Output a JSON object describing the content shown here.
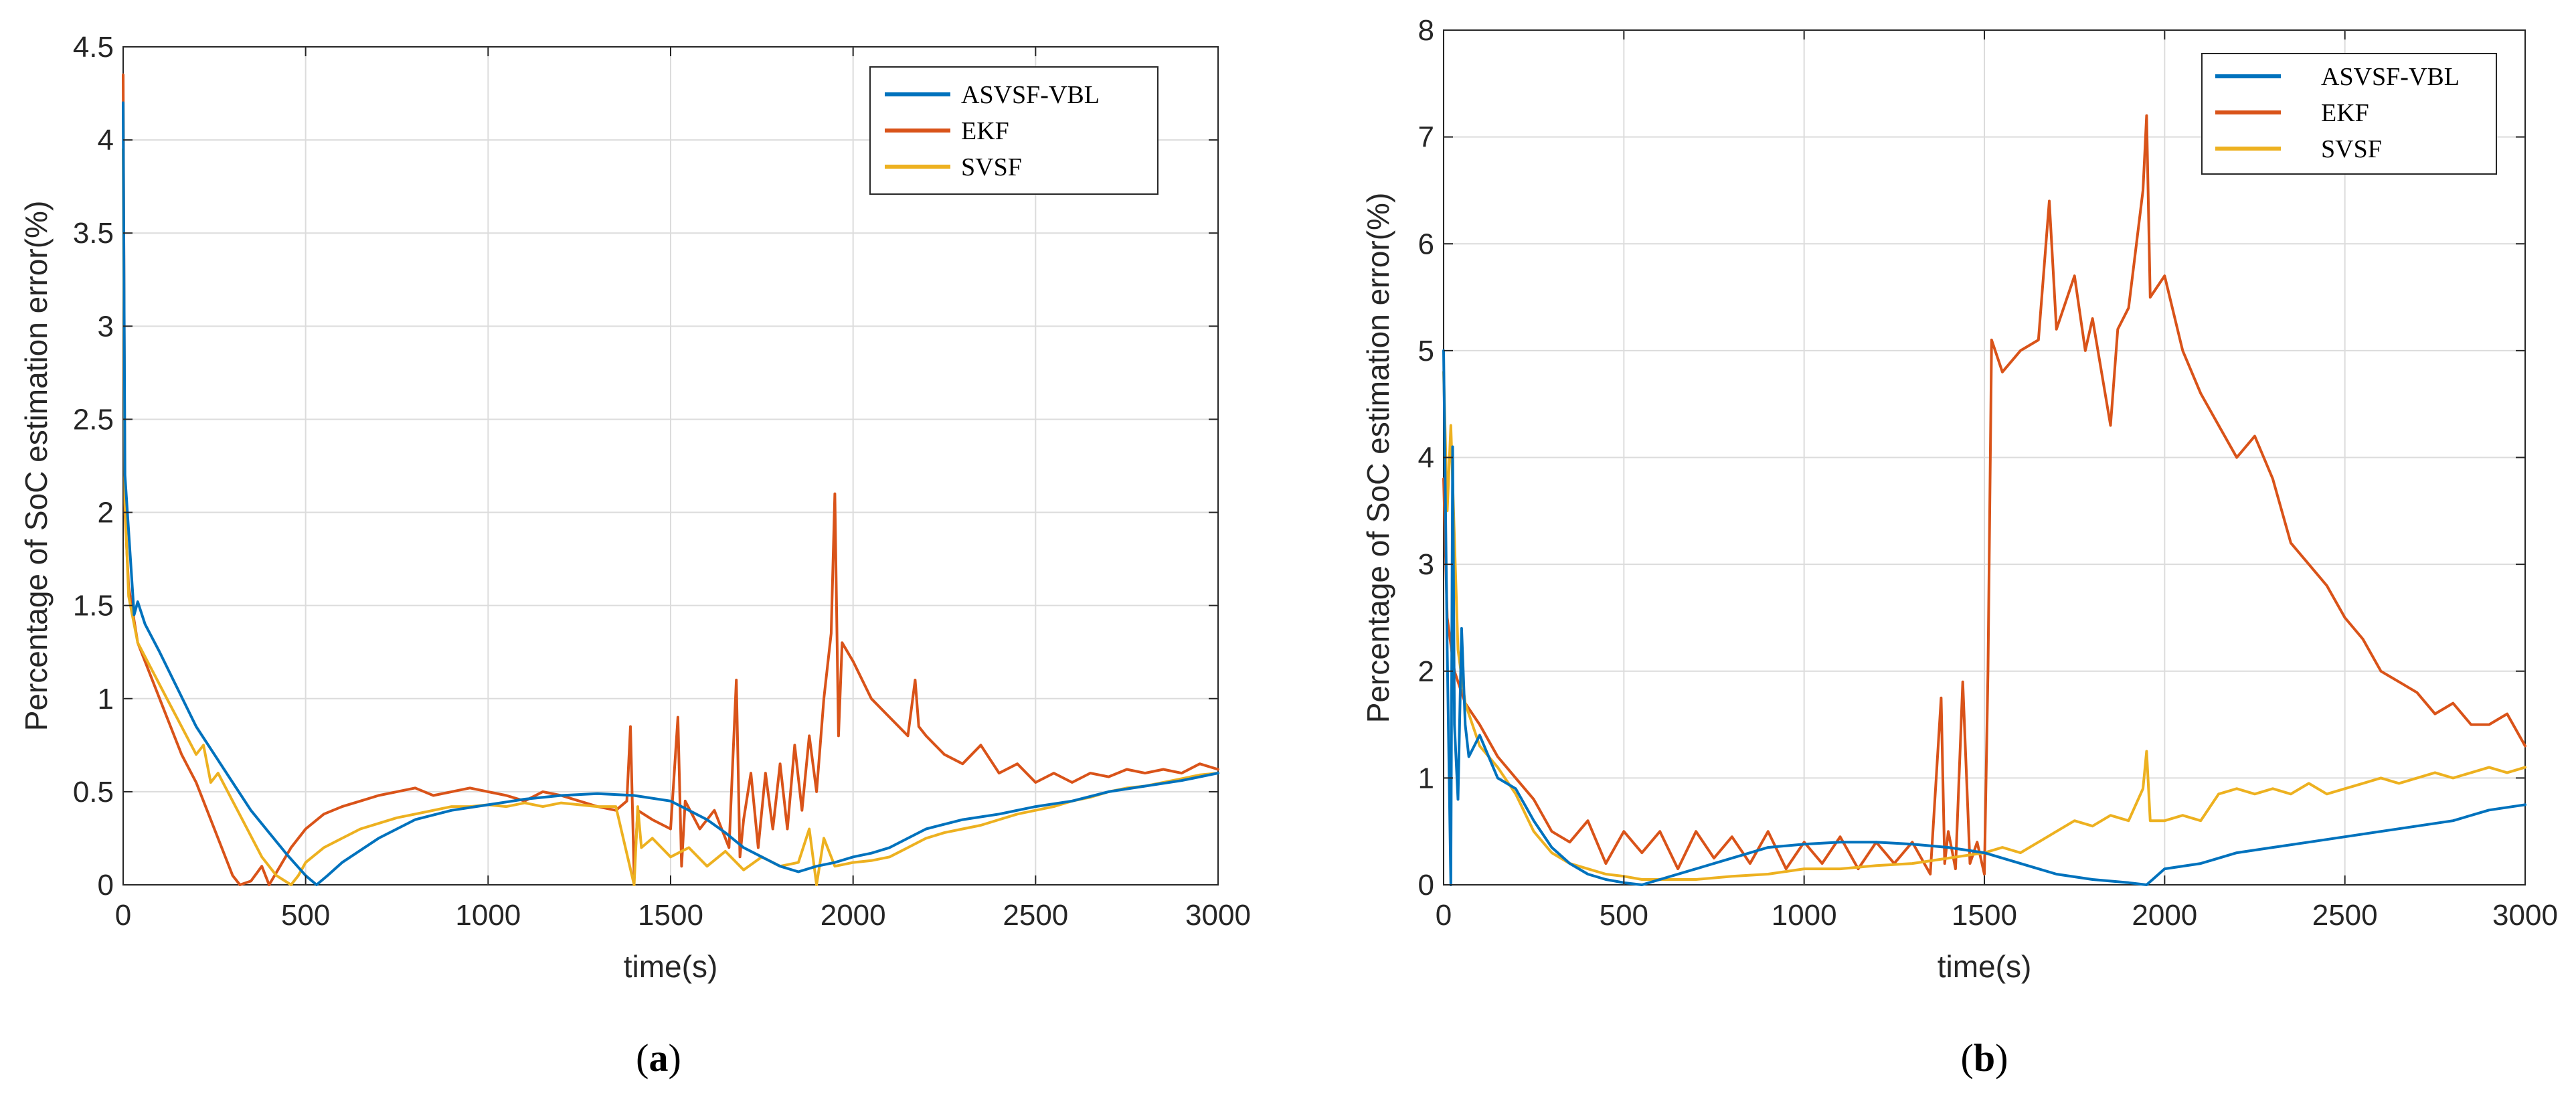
{
  "figure": {
    "panel_labels": [
      "(a)",
      "(b)"
    ]
  },
  "colors": {
    "ASVSF-VBL": "#0072BD",
    "EKF": "#D95319",
    "SVSF": "#EDB120",
    "grid": "#dcdcdc",
    "axis": "#262626"
  },
  "chart_data": [
    {
      "type": "line",
      "panel": "(a)",
      "title": "",
      "xlabel": "time(s)",
      "ylabel": "Percentage of SoC estimation error(%)",
      "xlim": [
        0,
        3000
      ],
      "ylim": [
        0,
        4.5
      ],
      "xticks": [
        0,
        500,
        1000,
        1500,
        2000,
        2500,
        3000
      ],
      "yticks": [
        0,
        0.5,
        1,
        1.5,
        2,
        2.5,
        3,
        3.5,
        4,
        4.5
      ],
      "xtick_labels": [
        "0",
        "500",
        "1000",
        "1500",
        "2000",
        "2500",
        "3000"
      ],
      "ytick_labels": [
        "0",
        "0.5",
        "1",
        "1.5",
        "2",
        "2.5",
        "3",
        "3.5",
        "4",
        "4.5"
      ],
      "grid": true,
      "legend_position": "top-right",
      "series": [
        {
          "name": "ASVSF-VBL",
          "x": [
            0,
            5,
            15,
            30,
            40,
            60,
            100,
            150,
            200,
            250,
            300,
            350,
            400,
            450,
            500,
            530,
            560,
            600,
            700,
            800,
            900,
            1000,
            1100,
            1200,
            1300,
            1400,
            1500,
            1550,
            1600,
            1650,
            1700,
            1750,
            1800,
            1850,
            1900,
            1950,
            2000,
            2050,
            2100,
            2150,
            2200,
            2300,
            2400,
            2500,
            2600,
            2700,
            2800,
            2900,
            3000
          ],
          "y": [
            4.2,
            2.2,
            1.9,
            1.45,
            1.52,
            1.4,
            1.25,
            1.05,
            0.85,
            0.7,
            0.55,
            0.4,
            0.28,
            0.16,
            0.05,
            0.0,
            0.05,
            0.12,
            0.25,
            0.35,
            0.4,
            0.43,
            0.46,
            0.48,
            0.49,
            0.48,
            0.45,
            0.4,
            0.35,
            0.28,
            0.2,
            0.15,
            0.1,
            0.07,
            0.1,
            0.12,
            0.15,
            0.17,
            0.2,
            0.25,
            0.3,
            0.35,
            0.38,
            0.42,
            0.45,
            0.5,
            0.53,
            0.56,
            0.6
          ]
        },
        {
          "name": "EKF",
          "x": [
            0,
            5,
            15,
            40,
            80,
            120,
            160,
            200,
            240,
            280,
            300,
            320,
            350,
            380,
            400,
            430,
            460,
            500,
            550,
            600,
            650,
            700,
            750,
            800,
            850,
            900,
            950,
            1000,
            1050,
            1100,
            1150,
            1200,
            1250,
            1300,
            1350,
            1380,
            1390,
            1400,
            1410,
            1450,
            1500,
            1520,
            1530,
            1540,
            1580,
            1620,
            1660,
            1680,
            1690,
            1700,
            1720,
            1740,
            1760,
            1780,
            1800,
            1820,
            1840,
            1860,
            1880,
            1900,
            1920,
            1940,
            1950,
            1960,
            1970,
            2000,
            2050,
            2100,
            2150,
            2170,
            2180,
            2200,
            2250,
            2300,
            2350,
            2400,
            2450,
            2500,
            2550,
            2600,
            2650,
            2700,
            2750,
            2800,
            2850,
            2900,
            2950,
            3000
          ],
          "y": [
            4.35,
            2.0,
            1.6,
            1.3,
            1.1,
            0.9,
            0.7,
            0.55,
            0.35,
            0.15,
            0.05,
            0.0,
            0.02,
            0.1,
            0.0,
            0.1,
            0.2,
            0.3,
            0.38,
            0.42,
            0.45,
            0.48,
            0.5,
            0.52,
            0.48,
            0.5,
            0.52,
            0.5,
            0.48,
            0.45,
            0.5,
            0.48,
            0.45,
            0.42,
            0.4,
            0.45,
            0.85,
            0.05,
            0.4,
            0.35,
            0.3,
            0.9,
            0.1,
            0.45,
            0.3,
            0.4,
            0.2,
            1.1,
            0.15,
            0.35,
            0.6,
            0.2,
            0.6,
            0.3,
            0.65,
            0.3,
            0.75,
            0.4,
            0.8,
            0.5,
            1.0,
            1.35,
            2.1,
            0.8,
            1.3,
            1.2,
            1.0,
            0.9,
            0.8,
            1.1,
            0.85,
            0.8,
            0.7,
            0.65,
            0.75,
            0.6,
            0.65,
            0.55,
            0.6,
            0.55,
            0.6,
            0.58,
            0.62,
            0.6,
            0.62,
            0.6,
            0.65,
            0.62
          ]
        },
        {
          "name": "SVSF",
          "x": [
            0,
            5,
            15,
            40,
            80,
            120,
            160,
            200,
            220,
            240,
            260,
            300,
            340,
            380,
            420,
            460,
            480,
            500,
            550,
            600,
            650,
            700,
            750,
            800,
            850,
            900,
            950,
            1000,
            1050,
            1100,
            1150,
            1200,
            1250,
            1300,
            1350,
            1400,
            1410,
            1420,
            1450,
            1500,
            1550,
            1600,
            1650,
            1700,
            1750,
            1800,
            1850,
            1880,
            1900,
            1920,
            1950,
            2000,
            2050,
            2100,
            2150,
            2200,
            2250,
            2300,
            2350,
            2400,
            2450,
            2500,
            2550,
            2600,
            2650,
            2700,
            2750,
            2800,
            2850,
            2900,
            2950,
            3000
          ],
          "y": [
            3.95,
            2.05,
            1.55,
            1.3,
            1.15,
            1.0,
            0.85,
            0.7,
            0.75,
            0.55,
            0.6,
            0.45,
            0.3,
            0.15,
            0.05,
            0.0,
            0.05,
            0.12,
            0.2,
            0.25,
            0.3,
            0.33,
            0.36,
            0.38,
            0.4,
            0.42,
            0.42,
            0.43,
            0.42,
            0.44,
            0.42,
            0.44,
            0.43,
            0.42,
            0.42,
            0.0,
            0.42,
            0.2,
            0.25,
            0.15,
            0.2,
            0.1,
            0.18,
            0.08,
            0.15,
            0.1,
            0.12,
            0.3,
            0.0,
            0.25,
            0.1,
            0.12,
            0.13,
            0.15,
            0.2,
            0.25,
            0.28,
            0.3,
            0.32,
            0.35,
            0.38,
            0.4,
            0.42,
            0.45,
            0.47,
            0.5,
            0.52,
            0.53,
            0.55,
            0.57,
            0.59,
            0.6
          ]
        }
      ]
    },
    {
      "type": "line",
      "panel": "(b)",
      "title": "",
      "xlabel": "time(s)",
      "ylabel": "Percentage of SoC estimation error(%)",
      "xlim": [
        0,
        3000
      ],
      "ylim": [
        0,
        8
      ],
      "xticks": [
        0,
        500,
        1000,
        1500,
        2000,
        2500,
        3000
      ],
      "yticks": [
        0,
        1,
        2,
        3,
        4,
        5,
        6,
        7,
        8
      ],
      "xtick_labels": [
        "0",
        "500",
        "1000",
        "1500",
        "2000",
        "2500",
        "3000"
      ],
      "ytick_labels": [
        "0",
        "1",
        "2",
        "3",
        "4",
        "5",
        "6",
        "7",
        "8"
      ],
      "grid": true,
      "legend_position": "top-right",
      "series": [
        {
          "name": "ASVSF-VBL",
          "x": [
            0,
            10,
            20,
            25,
            30,
            40,
            50,
            60,
            70,
            100,
            150,
            200,
            250,
            300,
            350,
            400,
            450,
            500,
            550,
            600,
            700,
            800,
            900,
            1000,
            1100,
            1200,
            1300,
            1400,
            1500,
            1600,
            1700,
            1800,
            1900,
            1950,
            2000,
            2100,
            2200,
            2300,
            2400,
            2500,
            2600,
            2700,
            2800,
            2900,
            3000
          ],
          "y": [
            5.0,
            2.2,
            0.0,
            4.1,
            1.5,
            0.8,
            2.4,
            1.5,
            1.2,
            1.4,
            1.0,
            0.9,
            0.6,
            0.35,
            0.2,
            0.1,
            0.05,
            0.02,
            0.0,
            0.05,
            0.15,
            0.25,
            0.35,
            0.38,
            0.4,
            0.4,
            0.38,
            0.35,
            0.3,
            0.2,
            0.1,
            0.05,
            0.02,
            0.0,
            0.15,
            0.2,
            0.3,
            0.35,
            0.4,
            0.45,
            0.5,
            0.55,
            0.6,
            0.7,
            0.75
          ]
        },
        {
          "name": "EKF",
          "x": [
            0,
            10,
            30,
            60,
            100,
            150,
            200,
            250,
            300,
            350,
            400,
            450,
            500,
            550,
            600,
            650,
            700,
            750,
            800,
            850,
            900,
            950,
            1000,
            1050,
            1100,
            1150,
            1200,
            1250,
            1300,
            1350,
            1380,
            1390,
            1400,
            1420,
            1440,
            1460,
            1480,
            1500,
            1510,
            1520,
            1550,
            1600,
            1650,
            1680,
            1700,
            1750,
            1780,
            1800,
            1850,
            1870,
            1900,
            1940,
            1950,
            1960,
            2000,
            2050,
            2100,
            2150,
            2200,
            2250,
            2300,
            2350,
            2400,
            2450,
            2500,
            2550,
            2600,
            2650,
            2700,
            2750,
            2800,
            2850,
            2900,
            2950,
            3000
          ],
          "y": [
            3.8,
            2.5,
            2.0,
            1.7,
            1.5,
            1.2,
            1.0,
            0.8,
            0.5,
            0.4,
            0.6,
            0.2,
            0.5,
            0.3,
            0.5,
            0.15,
            0.5,
            0.25,
            0.45,
            0.2,
            0.5,
            0.15,
            0.4,
            0.2,
            0.45,
            0.15,
            0.4,
            0.2,
            0.4,
            0.1,
            1.75,
            0.2,
            0.5,
            0.15,
            1.9,
            0.2,
            0.4,
            0.1,
            2.0,
            5.1,
            4.8,
            5.0,
            5.1,
            6.4,
            5.2,
            5.7,
            5.0,
            5.3,
            4.3,
            5.2,
            5.4,
            6.5,
            7.2,
            5.5,
            5.7,
            5.0,
            4.6,
            4.3,
            4.0,
            4.2,
            3.8,
            3.2,
            3.0,
            2.8,
            2.5,
            2.3,
            2.0,
            1.9,
            1.8,
            1.6,
            1.7,
            1.5,
            1.5,
            1.6,
            1.3
          ]
        },
        {
          "name": "SVSF",
          "x": [
            0,
            10,
            20,
            40,
            60,
            80,
            100,
            150,
            200,
            250,
            300,
            350,
            400,
            450,
            500,
            550,
            600,
            700,
            800,
            900,
            1000,
            1100,
            1200,
            1300,
            1400,
            1500,
            1550,
            1600,
            1650,
            1700,
            1750,
            1800,
            1850,
            1900,
            1940,
            1950,
            1960,
            2000,
            2050,
            2100,
            2150,
            2200,
            2250,
            2300,
            2350,
            2400,
            2450,
            2500,
            2550,
            2600,
            2650,
            2700,
            2750,
            2800,
            2850,
            2900,
            2950,
            3000
          ],
          "y": [
            4.8,
            3.5,
            4.3,
            2.2,
            1.7,
            1.5,
            1.3,
            1.1,
            0.85,
            0.5,
            0.3,
            0.2,
            0.15,
            0.1,
            0.08,
            0.05,
            0.05,
            0.05,
            0.08,
            0.1,
            0.15,
            0.15,
            0.18,
            0.2,
            0.25,
            0.3,
            0.35,
            0.3,
            0.4,
            0.5,
            0.6,
            0.55,
            0.65,
            0.6,
            0.9,
            1.25,
            0.6,
            0.6,
            0.65,
            0.6,
            0.85,
            0.9,
            0.85,
            0.9,
            0.85,
            0.95,
            0.85,
            0.9,
            0.95,
            1.0,
            0.95,
            1.0,
            1.05,
            1.0,
            1.05,
            1.1,
            1.05,
            1.1
          ]
        }
      ]
    }
  ]
}
